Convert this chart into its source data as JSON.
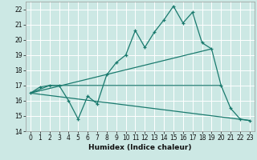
{
  "xlabel": "Humidex (Indice chaleur)",
  "bg_color": "#cce8e4",
  "grid_color": "#ffffff",
  "line_color": "#1a7a6e",
  "xlim": [
    -0.5,
    23.5
  ],
  "ylim": [
    14,
    22.5
  ],
  "yticks": [
    14,
    15,
    16,
    17,
    18,
    19,
    20,
    21,
    22
  ],
  "xticks": [
    0,
    1,
    2,
    3,
    4,
    5,
    6,
    7,
    8,
    9,
    10,
    11,
    12,
    13,
    14,
    15,
    16,
    17,
    18,
    19,
    20,
    21,
    22,
    23
  ],
  "line1_x": [
    0,
    1,
    2,
    3,
    4,
    5,
    6,
    7,
    8,
    9,
    10,
    11,
    12,
    13,
    14,
    15,
    16,
    17,
    18,
    19,
    20,
    21,
    22,
    23
  ],
  "line1_y": [
    16.5,
    16.9,
    17.0,
    17.0,
    16.0,
    14.8,
    16.3,
    15.8,
    17.7,
    18.5,
    19.0,
    20.6,
    19.5,
    20.5,
    21.3,
    22.2,
    21.1,
    21.8,
    19.8,
    19.4,
    17.0,
    15.5,
    14.8,
    14.7
  ],
  "line2_x": [
    0,
    2,
    3,
    20
  ],
  "line2_y": [
    16.5,
    17.0,
    17.0,
    17.0
  ],
  "line3_x": [
    0,
    19
  ],
  "line3_y": [
    16.5,
    19.4
  ],
  "line4_x": [
    0,
    23
  ],
  "line4_y": [
    16.5,
    14.7
  ]
}
